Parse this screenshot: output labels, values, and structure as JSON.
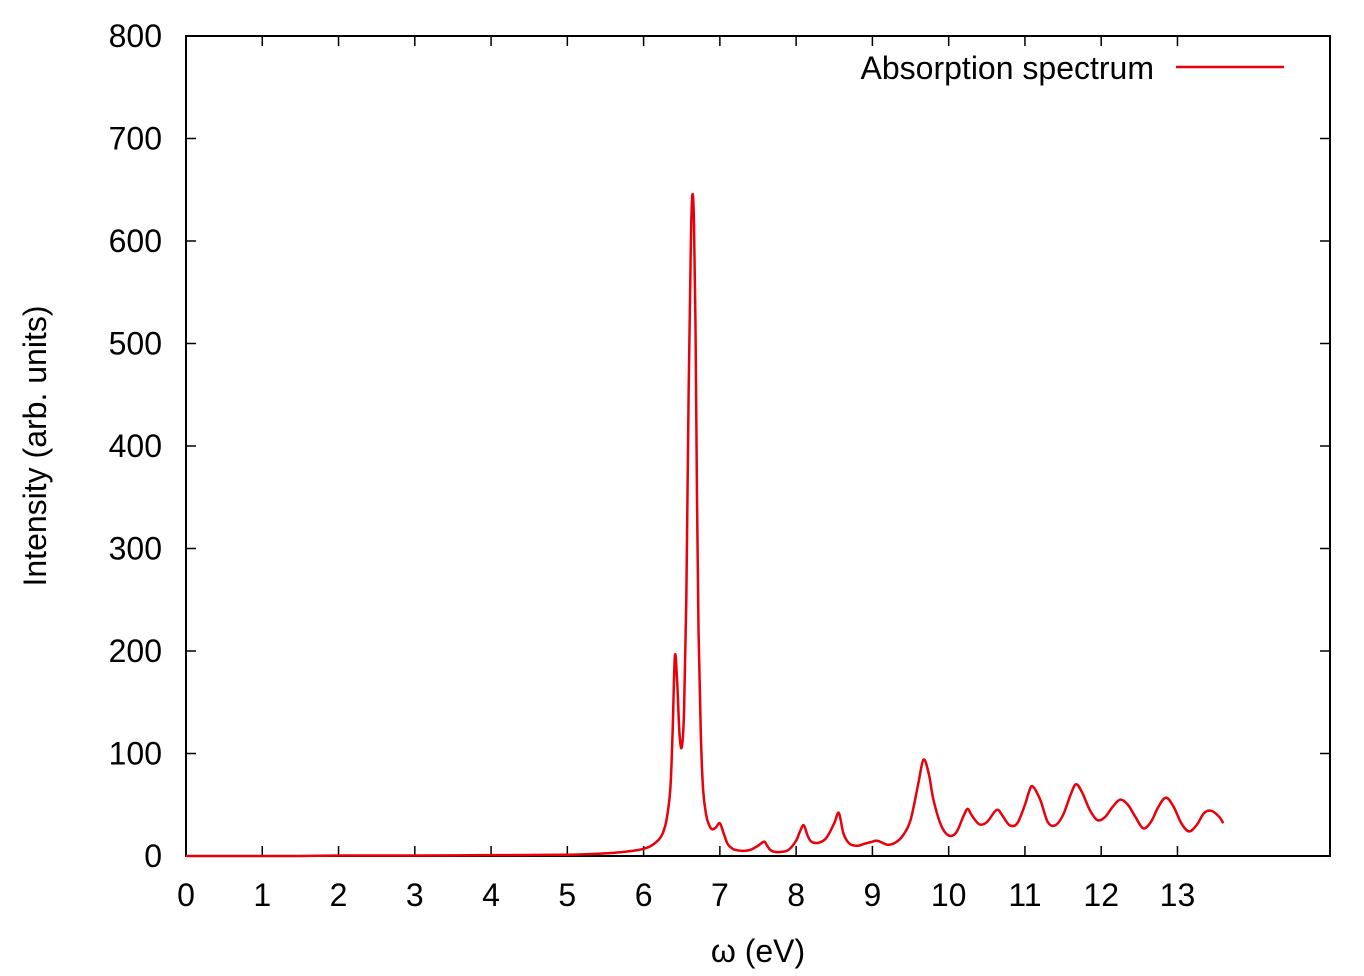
{
  "chart_data": {
    "type": "line",
    "title": "",
    "xlabel": "ω (eV)",
    "ylabel": "Intensity (arb. units)",
    "xlim": [
      0,
      15
    ],
    "ylim": [
      0,
      800
    ],
    "x_ticks": [
      0,
      1,
      2,
      3,
      4,
      5,
      6,
      7,
      8,
      9,
      10,
      11,
      12,
      13
    ],
    "x_tick_labels": [
      "0",
      "1",
      "2",
      "3",
      "4",
      "5",
      "6",
      "7",
      "8",
      "9",
      "10",
      "11",
      "12",
      "13"
    ],
    "y_ticks": [
      0,
      100,
      200,
      300,
      400,
      500,
      600,
      700,
      800
    ],
    "y_tick_labels": [
      "0",
      "100",
      "200",
      "300",
      "400",
      "500",
      "600",
      "700",
      "800"
    ],
    "grid": false,
    "legend_position": "top-right",
    "series": [
      {
        "name": "Absorption spectrum",
        "color": "#e8000b",
        "x": [
          0.0,
          0.5,
          1.0,
          1.5,
          2.0,
          2.5,
          3.0,
          3.5,
          4.0,
          4.5,
          5.0,
          5.2,
          5.4,
          5.6,
          5.8,
          5.9,
          6.0,
          6.1,
          6.2,
          6.25,
          6.3,
          6.35,
          6.38,
          6.41,
          6.44,
          6.47,
          6.5,
          6.53,
          6.56,
          6.59,
          6.62,
          6.64,
          6.66,
          6.68,
          6.7,
          6.72,
          6.75,
          6.78,
          6.82,
          6.86,
          6.9,
          6.95,
          7.0,
          7.05,
          7.1,
          7.15,
          7.2,
          7.3,
          7.4,
          7.5,
          7.58,
          7.62,
          7.66,
          7.72,
          7.8,
          7.9,
          8.0,
          8.05,
          8.1,
          8.15,
          8.2,
          8.3,
          8.4,
          8.5,
          8.56,
          8.62,
          8.7,
          8.8,
          8.9,
          9.0,
          9.05,
          9.1,
          9.2,
          9.3,
          9.4,
          9.5,
          9.6,
          9.67,
          9.74,
          9.8,
          9.9,
          10.0,
          10.1,
          10.2,
          10.25,
          10.3,
          10.4,
          10.5,
          10.6,
          10.65,
          10.7,
          10.8,
          10.9,
          11.0,
          11.05,
          11.1,
          11.2,
          11.3,
          11.4,
          11.5,
          11.6,
          11.67,
          11.75,
          11.85,
          11.95,
          12.05,
          12.15,
          12.25,
          12.35,
          12.45,
          12.55,
          12.65,
          12.75,
          12.85,
          12.95,
          13.05,
          13.15,
          13.25,
          13.35,
          13.45,
          13.55,
          13.6
        ],
        "y": [
          0,
          0,
          0,
          0,
          0.5,
          0.5,
          0.5,
          0.6,
          0.8,
          1,
          1.2,
          1.6,
          2.2,
          3,
          4.5,
          5.5,
          7,
          10,
          16,
          22,
          35,
          65,
          120,
          195,
          170,
          120,
          106,
          140,
          250,
          450,
          600,
          645,
          620,
          520,
          350,
          220,
          120,
          65,
          40,
          30,
          26,
          28,
          32,
          22,
          12,
          8,
          6,
          5,
          6,
          10,
          14,
          10,
          6,
          4,
          4,
          6,
          15,
          24,
          30,
          20,
          14,
          13,
          18,
          32,
          42,
          22,
          12,
          10,
          12,
          14,
          15,
          14,
          11,
          13,
          20,
          35,
          70,
          94,
          80,
          55,
          30,
          20,
          23,
          40,
          46,
          40,
          31,
          33,
          43,
          45,
          40,
          30,
          32,
          50,
          62,
          68,
          55,
          33,
          30,
          40,
          60,
          70,
          62,
          45,
          35,
          38,
          48,
          55,
          50,
          38,
          27,
          33,
          48,
          57,
          48,
          32,
          24,
          30,
          42,
          44,
          38,
          32
        ]
      }
    ]
  }
}
